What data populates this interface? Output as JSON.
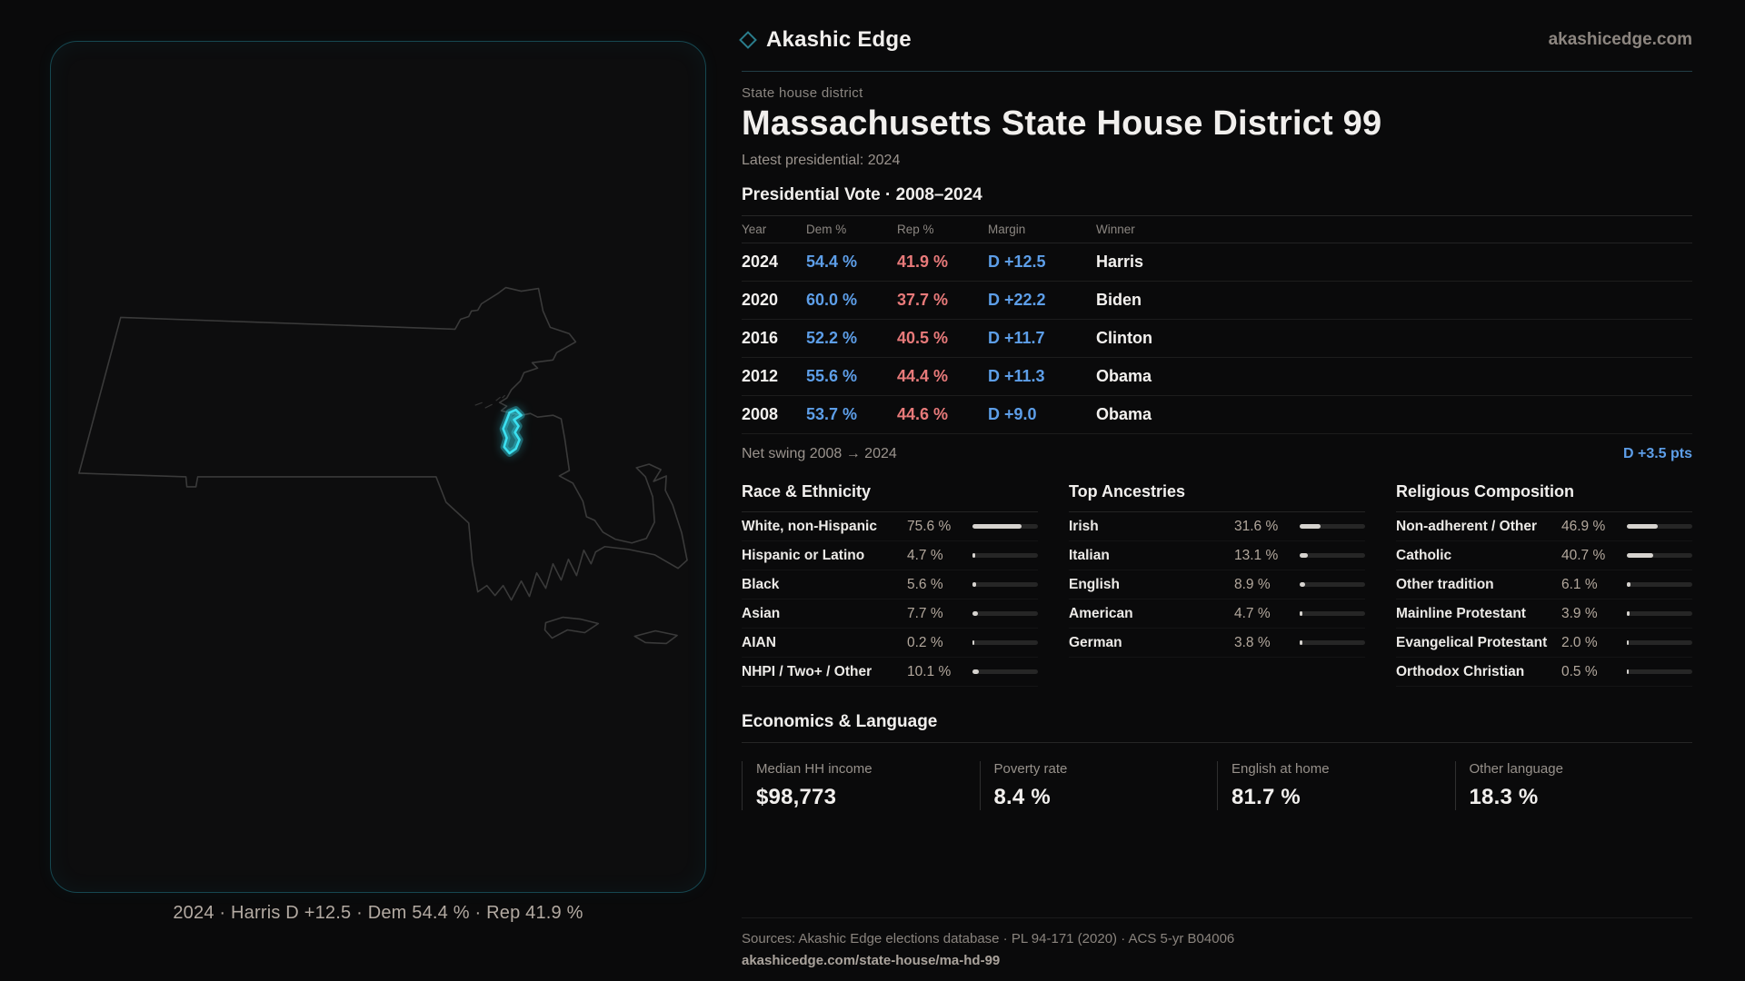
{
  "brand": {
    "name": "Akashic Edge",
    "domain": "akashicedge.com",
    "accent": "#35d8e8"
  },
  "page": {
    "eyebrow": "State house district",
    "title": "Massachusetts State House District 99",
    "subtitle": "Latest presidential: 2024"
  },
  "map": {
    "caption": "2024 · Harris D +12.5 · Dem 54.4 % · Rep 41.9 %"
  },
  "vote": {
    "title": "Presidential Vote · 2008–2024",
    "columns": [
      "Year",
      "Dem %",
      "Rep %",
      "Margin",
      "Winner"
    ],
    "rows": [
      {
        "year": "2024",
        "dem": "54.4 %",
        "rep": "41.9 %",
        "margin": "D +12.5",
        "winner": "Harris"
      },
      {
        "year": "2020",
        "dem": "60.0 %",
        "rep": "37.7 %",
        "margin": "D +22.2",
        "winner": "Biden"
      },
      {
        "year": "2016",
        "dem": "52.2 %",
        "rep": "40.5 %",
        "margin": "D +11.7",
        "winner": "Clinton"
      },
      {
        "year": "2012",
        "dem": "55.6 %",
        "rep": "44.4 %",
        "margin": "D +11.3",
        "winner": "Obama"
      },
      {
        "year": "2008",
        "dem": "53.7 %",
        "rep": "44.6 %",
        "margin": "D +9.0",
        "winner": "Obama"
      }
    ],
    "dem_color": "#5d9ee8",
    "rep_color": "#e87a7a"
  },
  "net_swing": {
    "label": "Net swing 2008 → 2024",
    "value": "D +3.5 pts"
  },
  "demographics": [
    {
      "title": "Race & Ethnicity",
      "rows": [
        {
          "label": "White, non-Hispanic",
          "pct": 75.6,
          "pct_text": "75.6 %"
        },
        {
          "label": "Hispanic or Latino",
          "pct": 4.7,
          "pct_text": "4.7 %"
        },
        {
          "label": "Black",
          "pct": 5.6,
          "pct_text": "5.6 %"
        },
        {
          "label": "Asian",
          "pct": 7.7,
          "pct_text": "7.7 %"
        },
        {
          "label": "AIAN",
          "pct": 0.2,
          "pct_text": "0.2 %"
        },
        {
          "label": "NHPI / Two+ / Other",
          "pct": 10.1,
          "pct_text": "10.1 %"
        }
      ]
    },
    {
      "title": "Top Ancestries",
      "rows": [
        {
          "label": "Irish",
          "pct": 31.6,
          "pct_text": "31.6 %"
        },
        {
          "label": "Italian",
          "pct": 13.1,
          "pct_text": "13.1 %"
        },
        {
          "label": "English",
          "pct": 8.9,
          "pct_text": "8.9 %"
        },
        {
          "label": "American",
          "pct": 4.7,
          "pct_text": "4.7 %"
        },
        {
          "label": "German",
          "pct": 3.8,
          "pct_text": "3.8 %"
        }
      ]
    },
    {
      "title": "Religious Composition",
      "rows": [
        {
          "label": "Non-adherent / Other",
          "pct": 46.9,
          "pct_text": "46.9 %"
        },
        {
          "label": "Catholic",
          "pct": 40.7,
          "pct_text": "40.7 %"
        },
        {
          "label": "Other tradition",
          "pct": 6.1,
          "pct_text": "6.1 %"
        },
        {
          "label": "Mainline Protestant",
          "pct": 3.9,
          "pct_text": "3.9 %"
        },
        {
          "label": "Evangelical Protestant",
          "pct": 2.0,
          "pct_text": "2.0 %"
        },
        {
          "label": "Orthodox Christian",
          "pct": 0.5,
          "pct_text": "0.5 %"
        }
      ]
    }
  ],
  "economics": {
    "title": "Economics & Language",
    "stats": [
      {
        "label": "Median HH income",
        "value": "$98,773"
      },
      {
        "label": "Poverty rate",
        "value": "8.4 %"
      },
      {
        "label": "English at home",
        "value": "81.7 %"
      },
      {
        "label": "Other language",
        "value": "18.3 %"
      }
    ]
  },
  "footer": {
    "sources": "Sources: Akashic Edge elections database · PL 94-171 (2020) · ACS 5-yr B04006",
    "permalink": "akashicedge.com/state-house/ma-hd-99"
  }
}
